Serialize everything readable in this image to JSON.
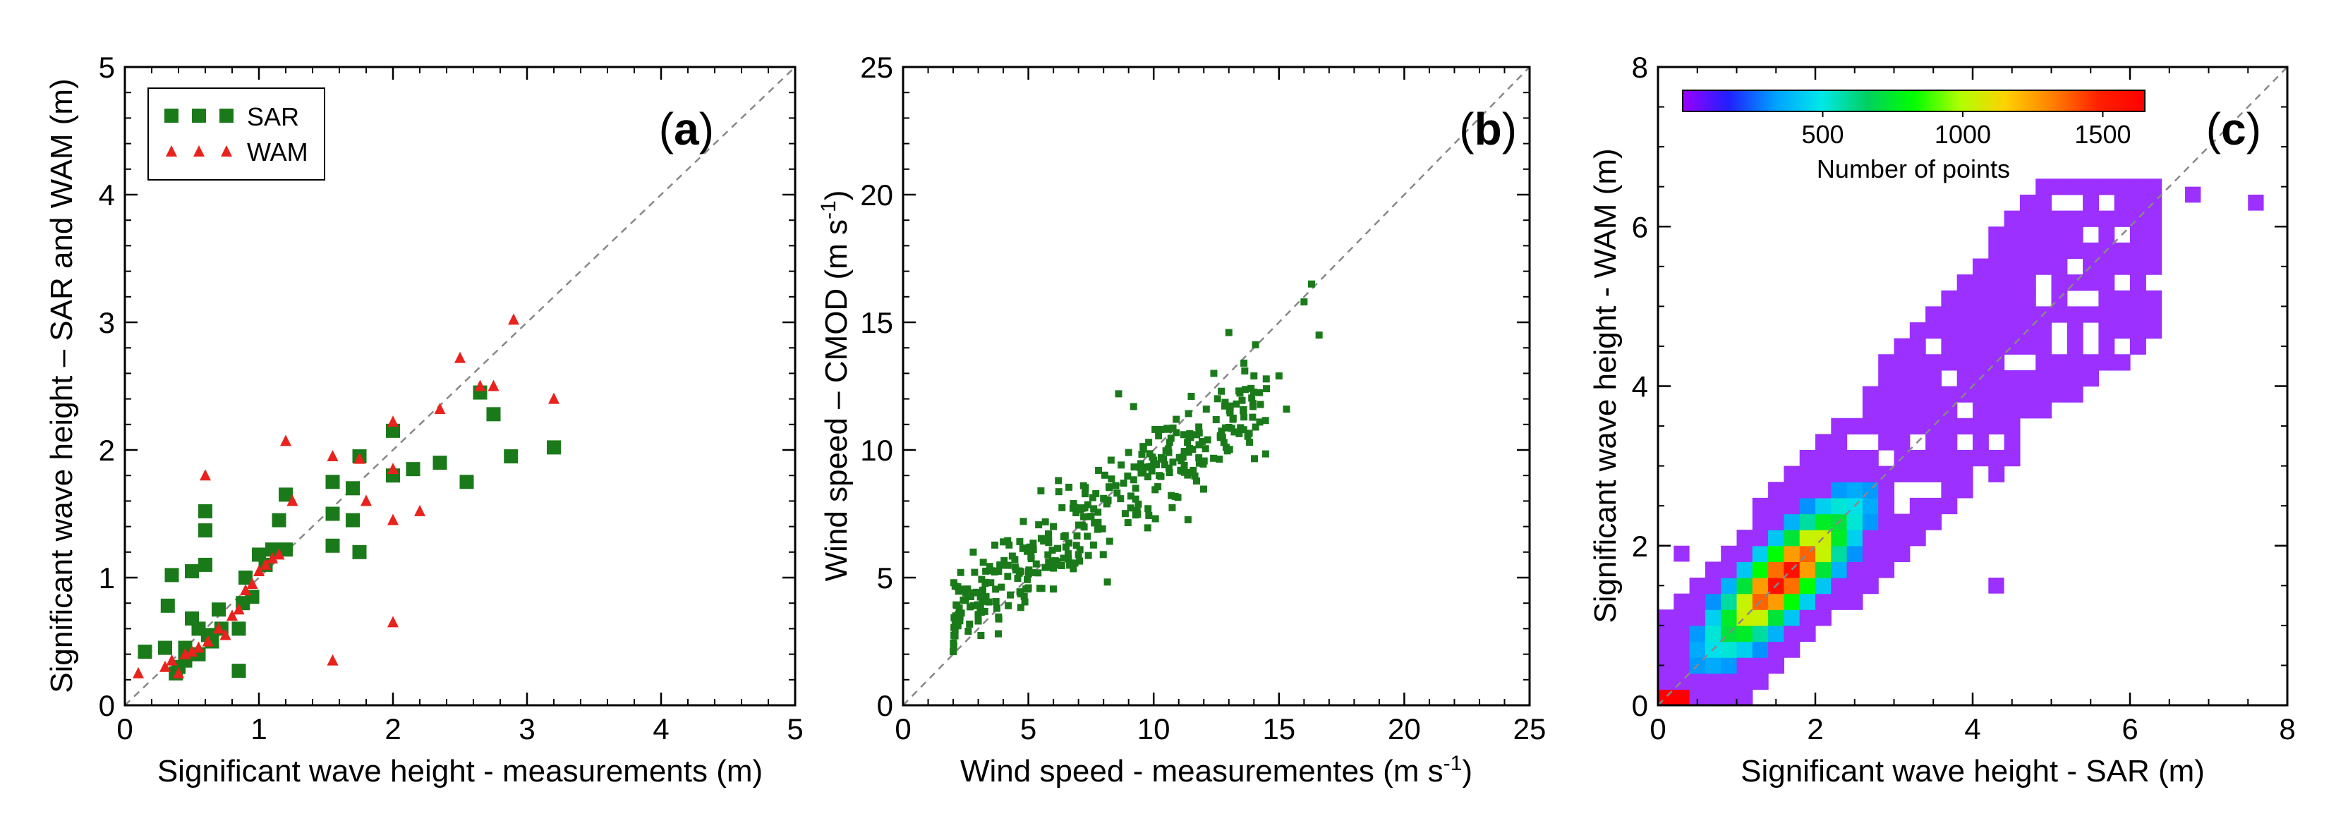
{
  "chart_data": [
    {
      "panel": "(a)",
      "panel_letter": "a",
      "type": "scatter",
      "xlabel": "Significant wave height - measurements (m)",
      "ylabel": "Significant wave height – SAR and WAM (m)",
      "xlim": [
        0,
        5
      ],
      "ylim": [
        0,
        5
      ],
      "xticks": [
        0,
        1,
        2,
        3,
        4,
        5
      ],
      "yticks": [
        0,
        1,
        2,
        3,
        4,
        5
      ],
      "diagonal": "1:1 dashed line",
      "legend": {
        "position": "top-left",
        "entries": [
          "SAR",
          "WAM"
        ]
      },
      "series": [
        {
          "name": "SAR",
          "marker": "square",
          "color": "#1a7a1a",
          "points": [
            [
              0.15,
              0.42
            ],
            [
              0.3,
              0.45
            ],
            [
              0.32,
              0.78
            ],
            [
              0.35,
              1.02
            ],
            [
              0.38,
              0.25
            ],
            [
              0.4,
              0.3
            ],
            [
              0.45,
              0.35
            ],
            [
              0.45,
              0.45
            ],
            [
              0.5,
              0.68
            ],
            [
              0.5,
              1.05
            ],
            [
              0.55,
              0.4
            ],
            [
              0.55,
              0.6
            ],
            [
              0.6,
              1.1
            ],
            [
              0.6,
              1.37
            ],
            [
              0.6,
              1.52
            ],
            [
              0.62,
              0.55
            ],
            [
              0.65,
              0.5
            ],
            [
              0.7,
              0.75
            ],
            [
              0.72,
              0.6
            ],
            [
              0.85,
              0.27
            ],
            [
              0.85,
              0.6
            ],
            [
              0.88,
              0.8
            ],
            [
              0.9,
              1.0
            ],
            [
              0.95,
              0.85
            ],
            [
              1.0,
              1.18
            ],
            [
              1.05,
              1.1
            ],
            [
              1.1,
              1.22
            ],
            [
              1.15,
              1.45
            ],
            [
              1.2,
              1.22
            ],
            [
              1.2,
              1.65
            ],
            [
              1.55,
              1.25
            ],
            [
              1.55,
              1.5
            ],
            [
              1.55,
              1.75
            ],
            [
              1.7,
              1.45
            ],
            [
              1.7,
              1.7
            ],
            [
              1.75,
              1.2
            ],
            [
              1.75,
              1.95
            ],
            [
              2.0,
              1.8
            ],
            [
              2.0,
              2.15
            ],
            [
              2.15,
              1.85
            ],
            [
              2.35,
              1.9
            ],
            [
              2.55,
              1.75
            ],
            [
              2.65,
              2.45
            ],
            [
              2.75,
              2.28
            ],
            [
              2.88,
              1.95
            ],
            [
              3.2,
              2.02
            ]
          ]
        },
        {
          "name": "WAM",
          "marker": "triangle",
          "color": "#e8221c",
          "points": [
            [
              0.1,
              0.25
            ],
            [
              0.3,
              0.3
            ],
            [
              0.35,
              0.35
            ],
            [
              0.4,
              0.25
            ],
            [
              0.45,
              0.4
            ],
            [
              0.5,
              0.42
            ],
            [
              0.55,
              0.45
            ],
            [
              0.6,
              1.8
            ],
            [
              0.62,
              0.5
            ],
            [
              0.7,
              0.6
            ],
            [
              0.75,
              0.55
            ],
            [
              0.8,
              0.7
            ],
            [
              0.85,
              0.75
            ],
            [
              0.9,
              0.9
            ],
            [
              0.95,
              0.95
            ],
            [
              1.0,
              1.05
            ],
            [
              1.05,
              1.1
            ],
            [
              1.1,
              1.15
            ],
            [
              1.15,
              1.18
            ],
            [
              1.2,
              2.07
            ],
            [
              1.25,
              1.6
            ],
            [
              1.55,
              0.35
            ],
            [
              1.55,
              1.95
            ],
            [
              1.75,
              1.93
            ],
            [
              1.8,
              1.6
            ],
            [
              2.0,
              0.65
            ],
            [
              2.0,
              1.45
            ],
            [
              2.0,
              1.85
            ],
            [
              2.0,
              2.22
            ],
            [
              2.2,
              1.52
            ],
            [
              2.35,
              2.32
            ],
            [
              2.5,
              2.72
            ],
            [
              2.65,
              2.5
            ],
            [
              2.75,
              2.5
            ],
            [
              2.9,
              3.02
            ],
            [
              3.2,
              2.4
            ]
          ]
        }
      ]
    },
    {
      "panel": "(b)",
      "panel_letter": "b",
      "type": "scatter",
      "xlabel_main": "Wind speed - measurementes (m s",
      "xlabel_sup": "-1",
      "xlabel_end": ")",
      "ylabel_main": "Wind speed – CMOD (m s",
      "ylabel_sup": "-1",
      "ylabel_end": ")",
      "xlim": [
        0,
        25
      ],
      "ylim": [
        0,
        25
      ],
      "xticks": [
        0,
        5,
        10,
        15,
        20,
        25
      ],
      "yticks": [
        0,
        5,
        10,
        15,
        20,
        25
      ],
      "diagonal": "1:1 dashed line",
      "color": "#1a7a1a",
      "n_points": 380,
      "trend": {
        "description": "approx. y = 0.67x + 2.2 with scatter",
        "x_range": [
          2,
          16.6
        ]
      },
      "points": [
        [
          2,
          2.1
        ],
        [
          2.1,
          3.5
        ],
        [
          2.3,
          5.2
        ],
        [
          2.5,
          4.4
        ],
        [
          2.6,
          2.9
        ],
        [
          2.8,
          6.0
        ],
        [
          3,
          3.3
        ],
        [
          3.2,
          5.6
        ],
        [
          3.5,
          4.8
        ],
        [
          3.8,
          2.8
        ],
        [
          4,
          6.4
        ],
        [
          4.2,
          3.9
        ],
        [
          4.5,
          5.3
        ],
        [
          4.8,
          7.2
        ],
        [
          5,
          4.6
        ],
        [
          5.2,
          6.1
        ],
        [
          5.5,
          8.4
        ],
        [
          5.8,
          5.4
        ],
        [
          6,
          7.0
        ],
        [
          6.2,
          8.8
        ],
        [
          6.5,
          6.2
        ],
        [
          6.8,
          7.9
        ],
        [
          7,
          5.9
        ],
        [
          7.2,
          8.6
        ],
        [
          7.5,
          7.4
        ],
        [
          7.8,
          9.2
        ],
        [
          8,
          8.1
        ],
        [
          8.3,
          9.6
        ],
        [
          8.6,
          12.2
        ],
        [
          8.8,
          8.7
        ],
        [
          9,
          9.9
        ],
        [
          9.2,
          11.7
        ],
        [
          9.5,
          9.1
        ],
        [
          9.8,
          10.3
        ],
        [
          10,
          9.6
        ],
        [
          10.3,
          10.8
        ],
        [
          10.6,
          9.9
        ],
        [
          10.9,
          11.2
        ],
        [
          11.2,
          10.6
        ],
        [
          11.5,
          12.1
        ],
        [
          11.8,
          10.9
        ],
        [
          12.1,
          11.6
        ],
        [
          12.4,
          13.0
        ],
        [
          12.7,
          12.3
        ],
        [
          13,
          14.6
        ],
        [
          13.3,
          11.8
        ],
        [
          13.6,
          13.4
        ],
        [
          14,
          12.9
        ],
        [
          14.5,
          12.4
        ],
        [
          15,
          12.9
        ],
        [
          15.3,
          11.6
        ],
        [
          16,
          15.8
        ],
        [
          16.3,
          16.5
        ],
        [
          16.6,
          14.5
        ]
      ]
    },
    {
      "panel": "(c)",
      "panel_letter": "c",
      "type": "heatmap",
      "xlabel": "Significant wave height - SAR (m)",
      "ylabel": "Significant wave height - WAM (m)",
      "xlim": [
        0,
        8
      ],
      "ylim": [
        0,
        8
      ],
      "xticks": [
        0,
        2,
        4,
        6,
        8
      ],
      "yticks": [
        0,
        2,
        4,
        6,
        8
      ],
      "diagonal": "1:1 dashed line",
      "bin_size_m": 0.2,
      "colorbar": {
        "label": "Number of points",
        "ticks": [
          500,
          1000,
          1500
        ],
        "range": [
          0,
          1650
        ],
        "colors": [
          "#9b00ff",
          "#2020ff",
          "#00a0ff",
          "#00e8e8",
          "#00d060",
          "#00ff00",
          "#b0ff00",
          "#ffd000",
          "#ff8000",
          "#ff2000",
          "#ff0000"
        ]
      },
      "low_count_color": "#9b30ff"
    }
  ]
}
